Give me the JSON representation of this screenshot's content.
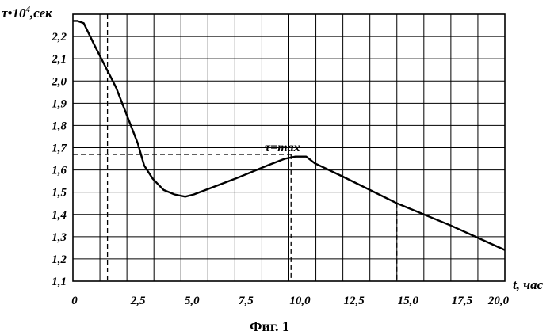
{
  "chart_data": {
    "type": "line",
    "title": "",
    "ylabel_prefix": "τ•10",
    "ylabel_exp": "4",
    "ylabel_unit": ",сек",
    "xlabel": "t, час",
    "caption": "Фиг. 1",
    "xlim": [
      0,
      20
    ],
    "ylim": [
      1.1,
      2.3
    ],
    "x_ticks": [
      0,
      2.5,
      5,
      7.5,
      10,
      12.5,
      15,
      17.5,
      20
    ],
    "x_tick_labels": [
      "0",
      "2,5",
      "5,0",
      "7,5",
      "10,0",
      "12,5",
      "15,0",
      "17,5",
      "20,0"
    ],
    "y_ticks": [
      1.1,
      1.2,
      1.3,
      1.4,
      1.5,
      1.6,
      1.7,
      1.8,
      1.9,
      2.0,
      2.1,
      2.2
    ],
    "y_tick_labels": [
      "1,1",
      "1,2",
      "1,3",
      "1,4",
      "1,5",
      "1,6",
      "1,7",
      "1,8",
      "1,9",
      "2,0",
      "2,1",
      "2,2"
    ],
    "grid": true,
    "annotation": "τ=max",
    "series": [
      {
        "x": [
          0,
          0.2,
          0.5,
          1.0,
          2.0,
          3.0,
          3.3,
          3.7,
          4.2,
          4.7,
          5.2,
          5.6,
          7.5,
          9.0,
          9.8,
          10.3,
          10.8,
          11.2,
          12.5,
          15.0,
          17.5,
          20.0
        ],
        "y": [
          2.27,
          2.27,
          2.26,
          2.16,
          1.97,
          1.72,
          1.62,
          1.56,
          1.51,
          1.49,
          1.48,
          1.49,
          1.56,
          1.62,
          1.65,
          1.66,
          1.66,
          1.63,
          1.57,
          1.45,
          1.35,
          1.24
        ]
      }
    ],
    "dashed_verticals_x": [
      1.6,
      10.1,
      15.0
    ],
    "max_point": {
      "x": 10.1,
      "y": 1.67
    }
  }
}
